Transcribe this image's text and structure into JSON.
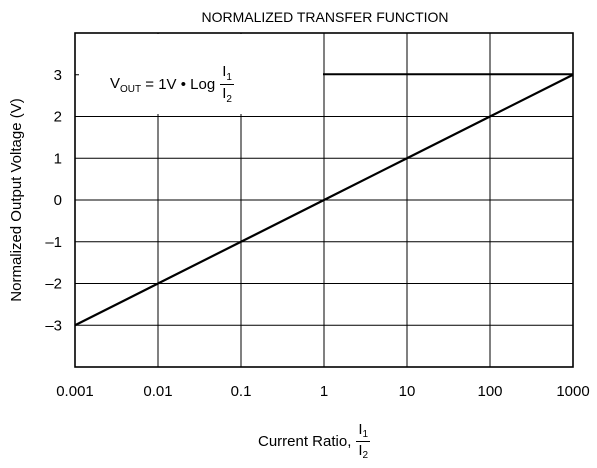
{
  "chart_data": {
    "type": "line",
    "title": "NORMALIZED TRANSFER FUNCTION",
    "xlabel": "Current Ratio,",
    "ylabel": "Normalized Output Voltage (V)",
    "xscale": "log",
    "xlim": [
      0.001,
      1000
    ],
    "ylim": [
      -4,
      4
    ],
    "grid": true,
    "x_ticks": [
      0.001,
      0.01,
      0.1,
      1,
      10,
      100,
      1000
    ],
    "x_tick_labels": [
      "0.001",
      "0.01",
      "0.1",
      "1",
      "10",
      "100",
      "1000"
    ],
    "y_ticks": [
      -3,
      -2,
      -1,
      0,
      1,
      2,
      3
    ],
    "y_tick_labels": [
      "–3",
      "–2",
      "–1",
      "0",
      "1",
      "2",
      "3"
    ],
    "series": [
      {
        "x": [
          0.001,
          0.01,
          0.1,
          1,
          10,
          100,
          1000
        ],
        "y": [
          -3,
          -2,
          -1,
          0,
          1,
          2,
          3
        ]
      }
    ],
    "annotation": {
      "v": "V",
      "v_sub": "OUT",
      "eq": " = 1V • Log",
      "num": "I",
      "num_sub": "1",
      "den": "I",
      "den_sub": "2"
    },
    "xlabel_fraction": {
      "num": "I",
      "num_sub": "1",
      "den": "I",
      "den_sub": "2"
    }
  }
}
